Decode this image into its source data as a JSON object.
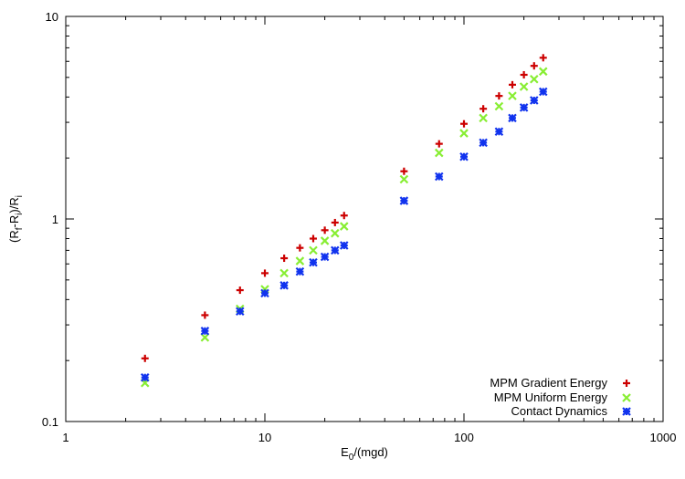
{
  "chart_data": {
    "type": "scatter",
    "xscale": "log",
    "yscale": "log",
    "xlim": [
      1,
      1000
    ],
    "ylim": [
      0.1,
      10
    ],
    "xticks": [
      1,
      10,
      100,
      1000
    ],
    "xtick_labels": [
      "1",
      "10",
      "100",
      "1000"
    ],
    "yticks": [
      0.1,
      1,
      10
    ],
    "ytick_labels": [
      "0.1",
      "1",
      "10"
    ],
    "xlabel": {
      "main": "E",
      "sub": "0",
      "rest": "/(mgd)"
    },
    "ylabel": {
      "p1": "(R",
      "s1": "f",
      "p2": "-R",
      "s2": "i",
      "p3": ")/R",
      "s3": "i"
    },
    "grid": false,
    "legend_position": "bottom-right",
    "series": [
      {
        "name": "MPM Gradient Energy",
        "color": "#cc0000",
        "marker": "plus",
        "points": [
          [
            2.5,
            0.205
          ],
          [
            5.0,
            0.335
          ],
          [
            7.5,
            0.445
          ],
          [
            10.0,
            0.54
          ],
          [
            12.5,
            0.64
          ],
          [
            15.0,
            0.72
          ],
          [
            17.5,
            0.8
          ],
          [
            20.0,
            0.88
          ],
          [
            22.5,
            0.96
          ],
          [
            25.0,
            1.04
          ],
          [
            50,
            1.72
          ],
          [
            75,
            2.35
          ],
          [
            100,
            2.95
          ],
          [
            125,
            3.5
          ],
          [
            150,
            4.05
          ],
          [
            175,
            4.6
          ],
          [
            200,
            5.15
          ],
          [
            225,
            5.7
          ],
          [
            250,
            6.25
          ]
        ]
      },
      {
        "name": "MPM Uniform Energy",
        "color": "#88ee33",
        "marker": "cross",
        "points": [
          [
            2.5,
            0.155
          ],
          [
            5.0,
            0.26
          ],
          [
            7.5,
            0.36
          ],
          [
            10.0,
            0.45
          ],
          [
            12.5,
            0.54
          ],
          [
            15.0,
            0.62
          ],
          [
            17.5,
            0.7
          ],
          [
            20.0,
            0.78
          ],
          [
            22.5,
            0.85
          ],
          [
            25.0,
            0.92
          ],
          [
            50,
            1.57
          ],
          [
            75,
            2.12
          ],
          [
            100,
            2.65
          ],
          [
            125,
            3.15
          ],
          [
            150,
            3.6
          ],
          [
            175,
            4.05
          ],
          [
            200,
            4.5
          ],
          [
            225,
            4.9
          ],
          [
            250,
            5.35
          ]
        ]
      },
      {
        "name": "Contact Dynamics",
        "color": "#1133ee",
        "marker": "star",
        "points": [
          [
            2.5,
            0.165
          ],
          [
            5.0,
            0.28
          ],
          [
            7.5,
            0.35
          ],
          [
            10.0,
            0.43
          ],
          [
            12.5,
            0.47
          ],
          [
            15.0,
            0.55
          ],
          [
            17.5,
            0.61
          ],
          [
            20.0,
            0.65
          ],
          [
            22.5,
            0.7
          ],
          [
            25.0,
            0.74
          ],
          [
            50,
            1.23
          ],
          [
            75,
            1.62
          ],
          [
            100,
            2.03
          ],
          [
            125,
            2.38
          ],
          [
            150,
            2.7
          ],
          [
            175,
            3.15
          ],
          [
            200,
            3.55
          ],
          [
            225,
            3.85
          ],
          [
            250,
            4.25
          ]
        ]
      }
    ]
  }
}
